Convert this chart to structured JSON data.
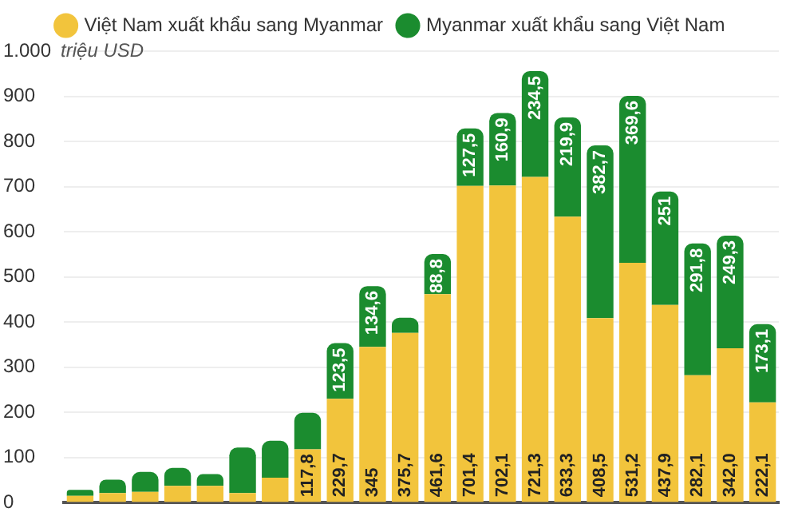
{
  "chart_data": {
    "type": "bar",
    "stacked": true,
    "ylabel": "triệu USD",
    "legend": "top",
    "grid": "y",
    "categories": [
      null,
      null,
      null,
      null,
      null,
      null,
      null,
      null,
      null,
      null,
      null,
      null,
      null,
      null,
      null,
      null,
      null,
      null,
      null,
      null,
      null,
      null
    ],
    "series": [
      {
        "name": "Việt Nam xuất khẩu sang Myanmar",
        "color": "#f2c43c",
        "values": [
          15,
          21,
          24,
          37,
          37,
          21,
          55,
          117.8,
          229.7,
          345,
          375.7,
          461.6,
          701.4,
          702.1,
          721.3,
          633.3,
          408.5,
          531.2,
          437.9,
          282.1,
          342.0,
          222.1
        ],
        "value_labels": [
          null,
          null,
          null,
          null,
          null,
          null,
          null,
          "117,8",
          "229,7",
          "345",
          "375,7",
          "461,6",
          "701,4",
          "702,1",
          "721,3",
          "633,3",
          "408,5",
          "531,2",
          "437,9",
          "282,1",
          "342,0",
          "222,1"
        ]
      },
      {
        "name": "Myanmar xuất khẩu sang Việt Nam",
        "color": "#1b8c2f",
        "values": [
          13,
          30,
          44,
          40,
          26,
          101,
          82,
          81,
          123.5,
          134.6,
          34,
          88.8,
          127.5,
          160.9,
          234.5,
          219.9,
          382.7,
          369.6,
          251,
          291.8,
          249.3,
          173.1
        ],
        "value_labels": [
          null,
          null,
          null,
          null,
          null,
          null,
          null,
          null,
          "123,5",
          "134,6",
          null,
          "88,8",
          "127,5",
          "160,9",
          "234,5",
          "219,9",
          "382,7",
          "369,6",
          "251",
          "291,8",
          "249,3",
          "173,1"
        ]
      }
    ],
    "ylim": [
      0,
      1000
    ],
    "yticks": [
      0,
      100,
      200,
      300,
      400,
      500,
      600,
      700,
      800,
      900,
      {
        "value": 1000,
        "label": "1.000"
      }
    ]
  }
}
